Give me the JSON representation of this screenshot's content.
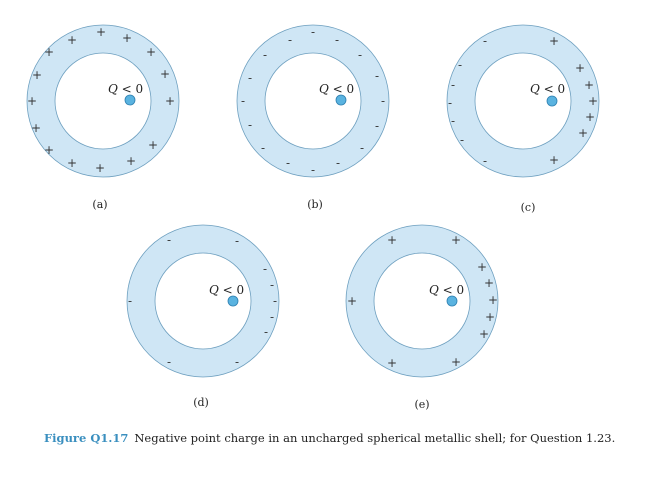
{
  "charge_label_prefix": "Q",
  "charge_label_suffix": " < 0",
  "panels": [
    {
      "label": "(a)",
      "inner": [],
      "outer": "+"
    },
    {
      "label": "(b)",
      "inner": [],
      "outer": "-"
    },
    {
      "label": "(c)",
      "inner": [],
      "outer": "mixed-c"
    },
    {
      "label": "(d)",
      "inner": [],
      "outer": "-d"
    },
    {
      "label": "(e)",
      "inner": [],
      "outer": "+e"
    }
  ],
  "caption": {
    "figure": "Figure Q1.17",
    "text": "Negative point charge in an uncharged spherical metallic shell; for Question 1.23."
  },
  "colors": {
    "shell": "#cfe6f5",
    "charge": "#5ab3e0",
    "caption_accent": "#3a8fbf"
  }
}
